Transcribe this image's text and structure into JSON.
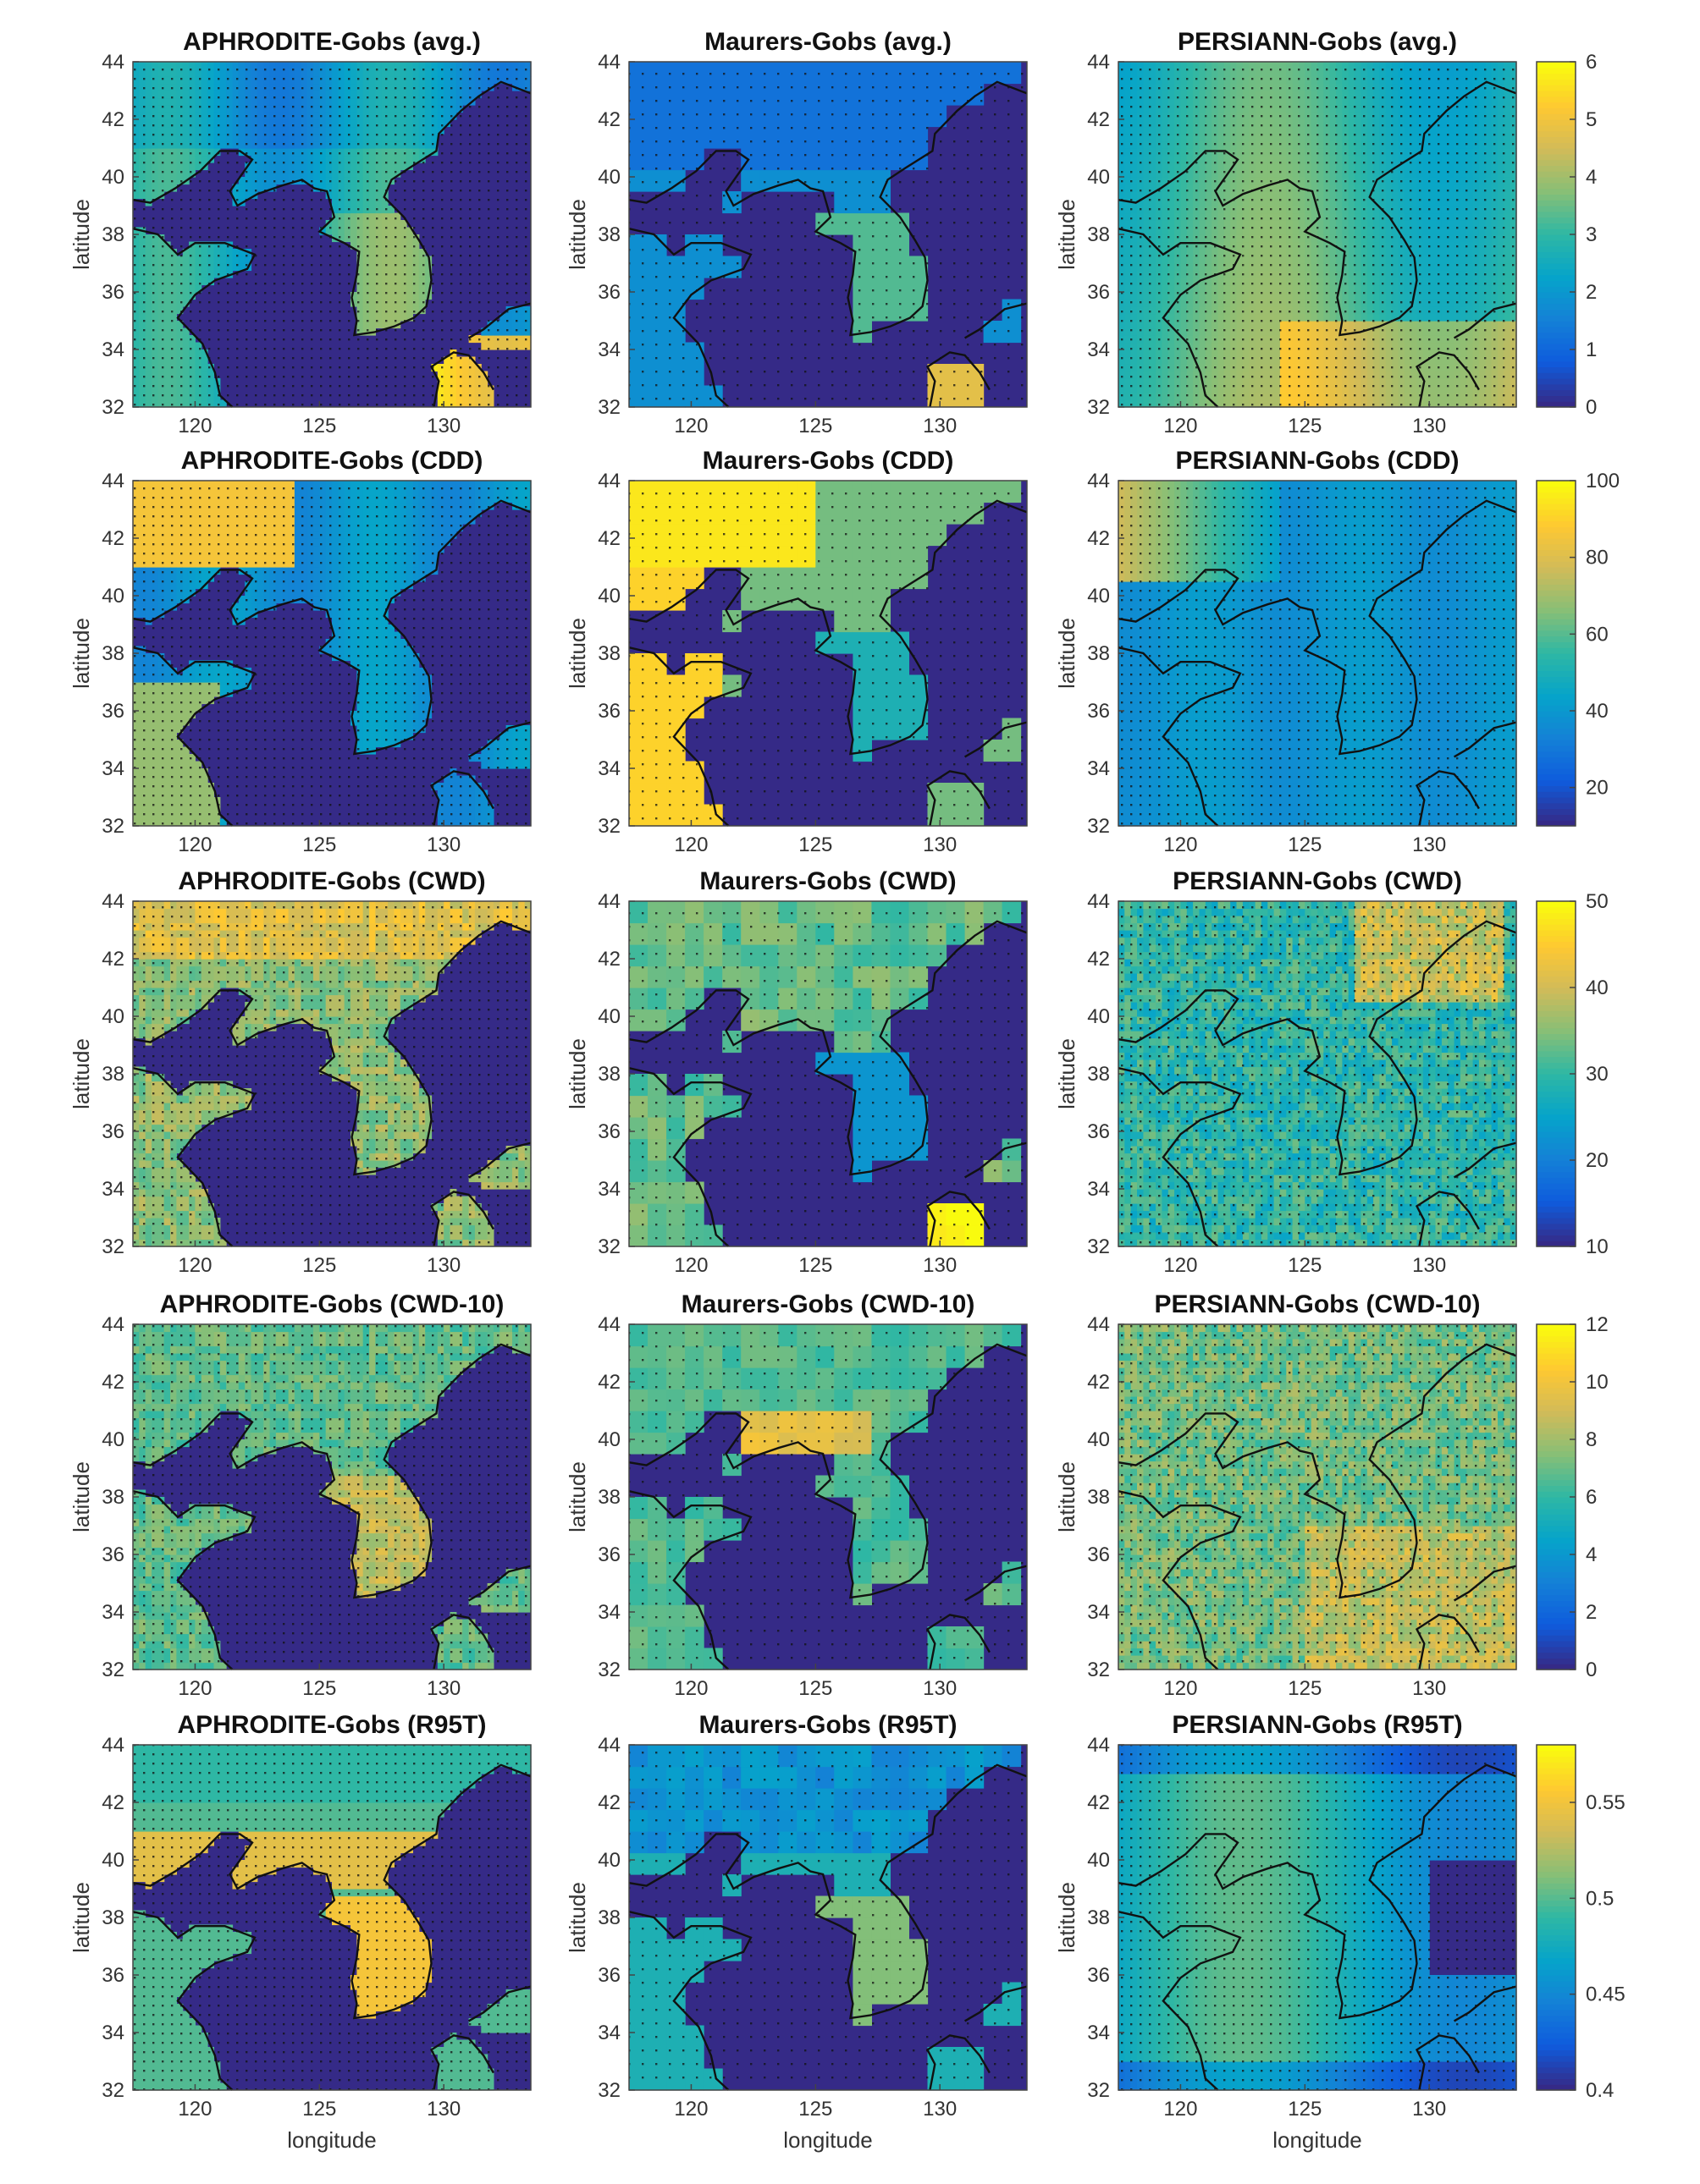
{
  "axes": {
    "xlabel": "longitude",
    "ylabel": "latitude",
    "xticks": [
      "120",
      "125",
      "130"
    ],
    "yticks": [
      "32",
      "34",
      "36",
      "38",
      "40",
      "42",
      "44"
    ],
    "xlim": [
      117.5,
      133.5
    ],
    "ylim": [
      32,
      44
    ]
  },
  "datasets": [
    "APHRODITE",
    "Maurers",
    "PERSIANN"
  ],
  "rows": [
    {
      "key": "avg",
      "titles": [
        "APHRODITE-Gobs (avg.)",
        "Maurers-Gobs (avg.)",
        "PERSIANN-Gobs (avg.)"
      ],
      "colorbar": {
        "ticks": [
          "0",
          "1",
          "2",
          "3",
          "4",
          "5",
          "6"
        ],
        "range": [
          0,
          6
        ]
      }
    },
    {
      "key": "cdd",
      "titles": [
        "APHRODITE-Gobs (CDD)",
        "Maurers-Gobs (CDD)",
        "PERSIANN-Gobs (CDD)"
      ],
      "colorbar": {
        "ticks": [
          "20",
          "40",
          "60",
          "80",
          "100"
        ],
        "range": [
          10,
          100
        ]
      }
    },
    {
      "key": "cwd",
      "titles": [
        "APHRODITE-Gobs (CWD)",
        "Maurers-Gobs (CWD)",
        "PERSIANN-Gobs (CWD)"
      ],
      "colorbar": {
        "ticks": [
          "10",
          "20",
          "30",
          "40",
          "50"
        ],
        "range": [
          10,
          50
        ]
      }
    },
    {
      "key": "cwd10",
      "titles": [
        "APHRODITE-Gobs (CWD-10)",
        "Maurers-Gobs (CWD-10)",
        "PERSIANN-Gobs (CWD-10)"
      ],
      "colorbar": {
        "ticks": [
          "0",
          "2",
          "4",
          "6",
          "8",
          "10",
          "12"
        ],
        "range": [
          0,
          12
        ]
      }
    },
    {
      "key": "r95t",
      "titles": [
        "APHRODITE-Gobs (R95T)",
        "Maurers-Gobs (R95T)",
        "PERSIANN-Gobs (R95T)"
      ],
      "colorbar": {
        "ticks": [
          "0.4",
          "0.45",
          "0.5",
          "0.55"
        ],
        "range": [
          0.4,
          0.58
        ]
      }
    }
  ],
  "colormap": "parula",
  "colors": {
    "ocean": "#352a87",
    "coast": "#111111",
    "stipple": "#111111"
  }
}
